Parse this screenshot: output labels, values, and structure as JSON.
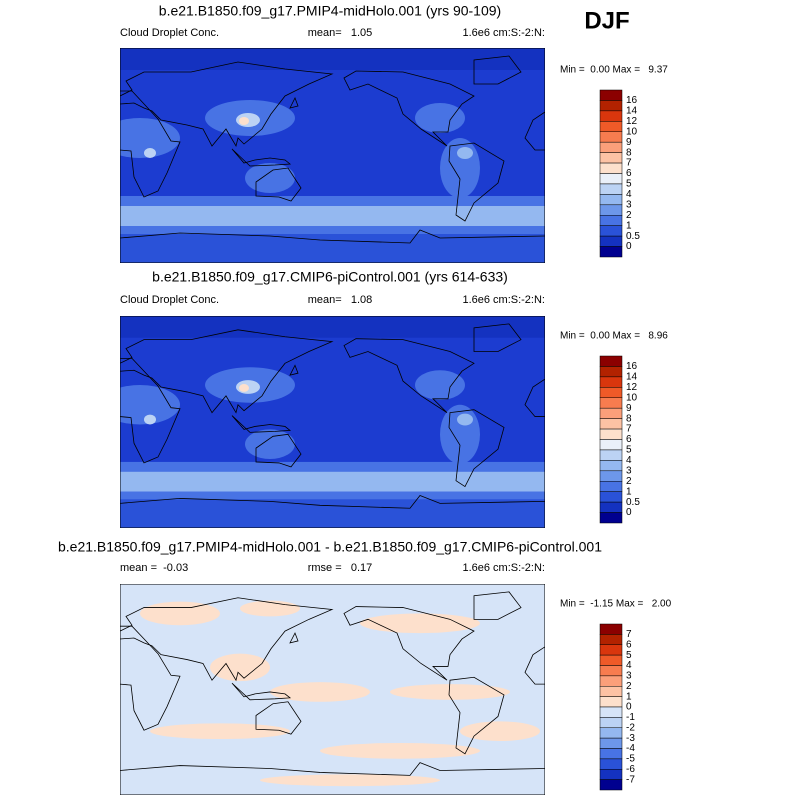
{
  "season": "DJF",
  "panels": [
    {
      "title": "b.e21.B1850.f09_g17.PMIP4-midHolo.001 (yrs 90-109)",
      "left_label": "Cloud Droplet Conc.",
      "center_label": "mean=   1.05",
      "right_label": "1.6e6 cm:S:-2:N:",
      "minmax": "Min =  0.00 Max =   9.37",
      "colorbar": {
        "labels": [
          "16",
          "14",
          "12",
          "10",
          "9",
          "8",
          "7",
          "6",
          "5",
          "4",
          "3",
          "2",
          "1",
          "0.5",
          "0"
        ],
        "colors": [
          "#8b0000",
          "#b22200",
          "#d9360d",
          "#ef5a28",
          "#f77c4f",
          "#fb9f7a",
          "#fdc2a4",
          "#fde0cc",
          "#eaf0f9",
          "#bcd3f4",
          "#94b8f0",
          "#6d97ea",
          "#4873e4",
          "#2a52d8",
          "#1432c0",
          "#00008f"
        ]
      }
    },
    {
      "title": "b.e21.B1850.f09_g17.CMIP6-piControl.001 (yrs 614-633)",
      "left_label": "Cloud Droplet Conc.",
      "center_label": "mean=   1.08",
      "right_label": "1.6e6 cm:S:-2:N:",
      "minmax": "Min =  0.00 Max =   8.96",
      "colorbar": {
        "labels": [
          "16",
          "14",
          "12",
          "10",
          "9",
          "8",
          "7",
          "6",
          "5",
          "4",
          "3",
          "2",
          "1",
          "0.5",
          "0"
        ],
        "colors": [
          "#8b0000",
          "#b22200",
          "#d9360d",
          "#ef5a28",
          "#f77c4f",
          "#fb9f7a",
          "#fdc2a4",
          "#fde0cc",
          "#eaf0f9",
          "#bcd3f4",
          "#94b8f0",
          "#6d97ea",
          "#4873e4",
          "#2a52d8",
          "#1432c0",
          "#00008f"
        ]
      }
    },
    {
      "title": "b.e21.B1850.f09_g17.PMIP4-midHolo.001 - b.e21.B1850.f09_g17.CMIP6-piControl.001",
      "left_label": "mean =  -0.03",
      "center_label": "rmse =   0.17",
      "right_label": "1.6e6 cm:S:-2:N:",
      "minmax": "Min =  -1.15 Max =   2.00",
      "colorbar": {
        "labels": [
          "7",
          "6",
          "5",
          "4",
          "3",
          "2",
          "1",
          "0",
          "-1",
          "-2",
          "-3",
          "-4",
          "-5",
          "-6",
          "-7"
        ],
        "colors": [
          "#8b0000",
          "#b22200",
          "#d9360d",
          "#ef5a28",
          "#f77c4f",
          "#fb9f7a",
          "#fdc2a4",
          "#fde0cc",
          "#d6e4f8",
          "#bcd3f4",
          "#94b8f0",
          "#6d97ea",
          "#4873e4",
          "#2a52d8",
          "#1432c0",
          "#00008f"
        ]
      }
    }
  ]
}
